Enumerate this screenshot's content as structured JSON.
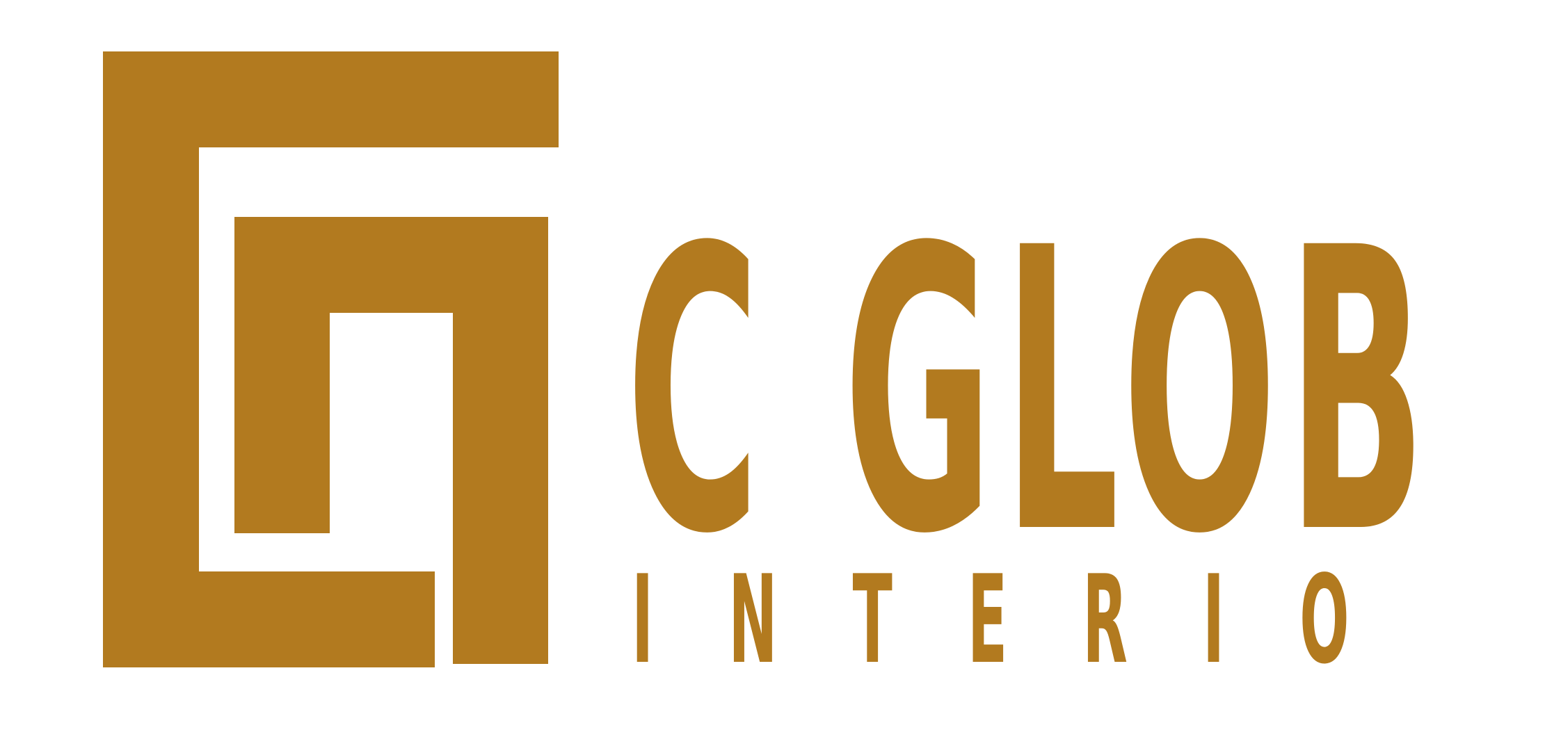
{
  "logo": {
    "brand_color": "#B27A1F",
    "icon": "nested-square-spiral-mark-icon",
    "name": "C GLOB",
    "tagline": "INTERIO"
  }
}
